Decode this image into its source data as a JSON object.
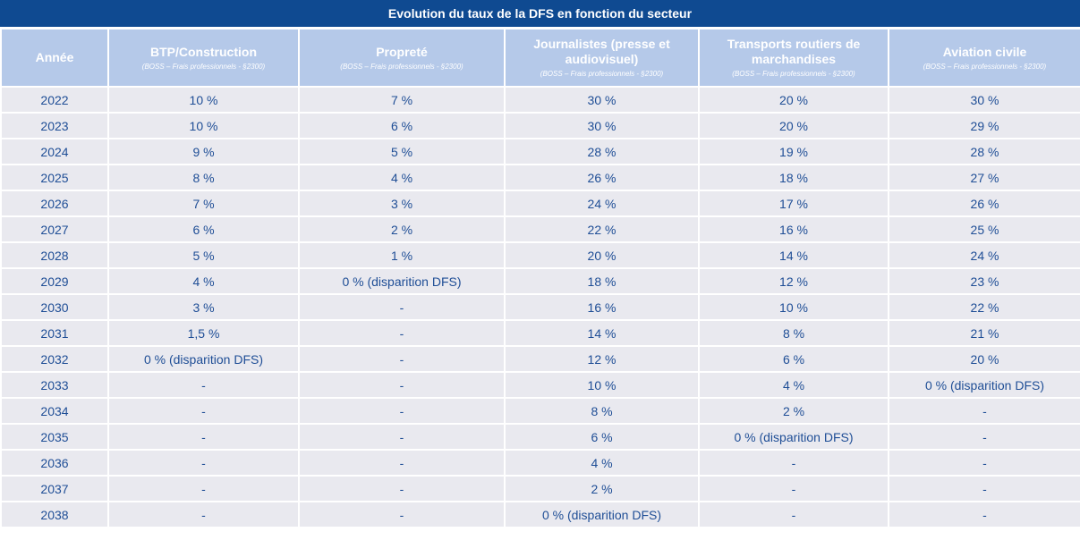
{
  "title": "Evolution du taux de la DFS en fonction du secteur",
  "header": {
    "year": "Année",
    "columns": [
      {
        "name": "BTP/Construction",
        "ref": "(BOSS – Frais professionnels - §2300)"
      },
      {
        "name": "Propreté",
        "ref": "(BOSS – Frais professionnels - §2300)"
      },
      {
        "name": "Journalistes (presse et audiovisuel)",
        "ref": "(BOSS – Frais professionnels - §2300)"
      },
      {
        "name": "Transports routiers de marchandises",
        "ref": "(BOSS – Frais professionnels - §2300)"
      },
      {
        "name": "Aviation civile",
        "ref": "(BOSS – Frais professionnels - §2300)"
      }
    ]
  },
  "rows": [
    [
      "2022",
      "10 %",
      "7 %",
      "30 %",
      "20 %",
      "30 %"
    ],
    [
      "2023",
      "10 %",
      "6 %",
      "30 %",
      "20 %",
      "29 %"
    ],
    [
      "2024",
      "9 %",
      "5 %",
      "28 %",
      "19 %",
      "28 %"
    ],
    [
      "2025",
      "8 %",
      "4 %",
      "26 %",
      "18 %",
      "27 %"
    ],
    [
      "2026",
      "7 %",
      "3 %",
      "24 %",
      "17 %",
      "26 %"
    ],
    [
      "2027",
      "6 %",
      "2 %",
      "22 %",
      "16 %",
      "25 %"
    ],
    [
      "2028",
      "5 %",
      "1 %",
      "20 %",
      "14 %",
      "24 %"
    ],
    [
      "2029",
      "4 %",
      "0 % (disparition DFS)",
      "18 %",
      "12 %",
      "23 %"
    ],
    [
      "2030",
      "3 %",
      "-",
      "16 %",
      "10 %",
      "22 %"
    ],
    [
      "2031",
      "1,5 %",
      "-",
      "14 %",
      "8 %",
      "21 %"
    ],
    [
      "2032",
      "0 % (disparition DFS)",
      "-",
      "12 %",
      "6 %",
      "20 %"
    ],
    [
      "2033",
      "-",
      "-",
      "10 %",
      "4 %",
      "0 % (disparition DFS)"
    ],
    [
      "2034",
      "-",
      "-",
      "8 %",
      "2 %",
      "-"
    ],
    [
      "2035",
      "-",
      "-",
      "6 %",
      "0 % (disparition DFS)",
      "-"
    ],
    [
      "2036",
      "-",
      "-",
      "4 %",
      "-",
      "-"
    ],
    [
      "2037",
      "-",
      "-",
      "2 %",
      "-",
      "-"
    ],
    [
      "2038",
      "-",
      "-",
      "0 % (disparition DFS)",
      "-",
      "-"
    ]
  ]
}
